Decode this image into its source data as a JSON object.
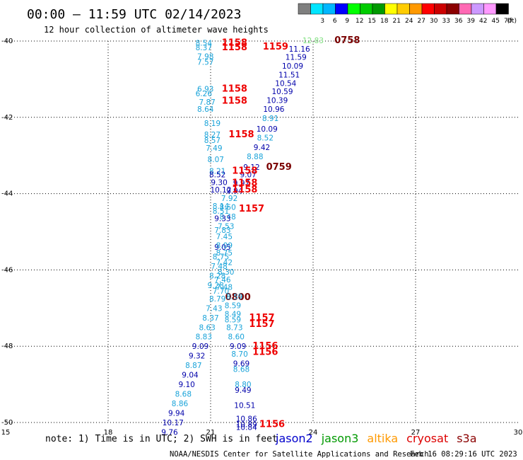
{
  "header": {
    "title": "00:00 – 11:59 UTC 02/14/2023",
    "subtitle": "12 hour collection of altimeter wave heights"
  },
  "scale": {
    "unit": "(ft)",
    "bins": [
      {
        "label": "",
        "color": "#7f7f7f"
      },
      {
        "label": "3",
        "color": "#00e5ff"
      },
      {
        "label": "6",
        "color": "#00b7ff"
      },
      {
        "label": "9",
        "color": "#0000ff"
      },
      {
        "label": "12",
        "color": "#00ff00"
      },
      {
        "label": "15",
        "color": "#00cc00"
      },
      {
        "label": "18",
        "color": "#009900"
      },
      {
        "label": "21",
        "color": "#ffff00"
      },
      {
        "label": "24",
        "color": "#ffcc00"
      },
      {
        "label": "27",
        "color": "#ff9900"
      },
      {
        "label": "30",
        "color": "#ff0000"
      },
      {
        "label": "33",
        "color": "#cc0000"
      },
      {
        "label": "36",
        "color": "#8b0000"
      },
      {
        "label": "39",
        "color": "#ff69b4"
      },
      {
        "label": "42",
        "color": "#cc99ff"
      },
      {
        "label": "45",
        "color": "#ff99ff"
      },
      {
        "label": "70",
        "color": "#000000"
      }
    ]
  },
  "footer": {
    "note": "note: 1) Time is in UTC; 2) SWH is in feet",
    "credit": "NOAA/NESDIS Center for Satellite Applications and Research",
    "timestamp": "Feb 16 08:29:16 UTC 2023",
    "legend": [
      {
        "name": "jason2",
        "color": "#0000cc"
      },
      {
        "name": "jason3",
        "color": "#009900"
      },
      {
        "name": "altika",
        "color": "#ff9900"
      },
      {
        "name": "cryosat",
        "color": "#dd0000"
      },
      {
        "name": "s3a",
        "color": "#8b0000"
      }
    ]
  },
  "colors": {
    "cyan": "#19a3d9",
    "blue": "#0000aa",
    "red": "#ee0000",
    "darkred": "#7a0000",
    "green": "#7fe07f"
  },
  "chart_data": {
    "type": "scatter",
    "xlim": [
      15,
      30
    ],
    "ylim": [
      -50,
      -40
    ],
    "xticks": [
      15,
      18,
      21,
      24,
      27,
      30
    ],
    "yticks": [
      -40,
      -42,
      -44,
      -46,
      -48,
      -50
    ],
    "grid": true,
    "points": [
      {
        "x": 20.8,
        "y": -40.05,
        "label": "8.54",
        "c": "cyan"
      },
      {
        "x": 20.8,
        "y": -40.17,
        "label": "8.37",
        "c": "cyan"
      },
      {
        "x": 20.85,
        "y": -40.4,
        "label": "7.98",
        "c": "cyan"
      },
      {
        "x": 20.85,
        "y": -40.55,
        "label": "7.57",
        "c": "cyan"
      },
      {
        "x": 21.7,
        "y": -40.05,
        "label": "1158",
        "c": "red",
        "big": true
      },
      {
        "x": 21.7,
        "y": -40.17,
        "label": "1158",
        "c": "red",
        "big": true
      },
      {
        "x": 22.9,
        "y": -40.15,
        "label": "1159",
        "c": "red",
        "big": true
      },
      {
        "x": 24.0,
        "y": -39.98,
        "label": "12.83",
        "c": "green"
      },
      {
        "x": 25.0,
        "y": -39.98,
        "label": "0758",
        "c": "darkred",
        "big": true
      },
      {
        "x": 23.6,
        "y": -40.2,
        "label": "11.16",
        "c": "blue"
      },
      {
        "x": 23.5,
        "y": -40.42,
        "label": "11.59",
        "c": "blue"
      },
      {
        "x": 23.4,
        "y": -40.65,
        "label": "10.09",
        "c": "blue"
      },
      {
        "x": 23.3,
        "y": -40.88,
        "label": "11.51",
        "c": "blue"
      },
      {
        "x": 23.2,
        "y": -41.1,
        "label": "10.54",
        "c": "blue"
      },
      {
        "x": 23.1,
        "y": -41.32,
        "label": "10.59",
        "c": "blue"
      },
      {
        "x": 22.95,
        "y": -41.55,
        "label": "10.39",
        "c": "blue"
      },
      {
        "x": 22.85,
        "y": -41.78,
        "label": "10.96",
        "c": "blue"
      },
      {
        "x": 22.75,
        "y": -42.02,
        "label": "8.91",
        "c": "cyan"
      },
      {
        "x": 22.65,
        "y": -42.3,
        "label": "10.09",
        "c": "blue"
      },
      {
        "x": 22.6,
        "y": -42.53,
        "label": "8.52",
        "c": "cyan"
      },
      {
        "x": 22.5,
        "y": -42.78,
        "label": "9.42",
        "c": "blue"
      },
      {
        "x": 22.3,
        "y": -43.02,
        "label": "8.88",
        "c": "cyan"
      },
      {
        "x": 22.2,
        "y": -43.3,
        "label": "9.12",
        "c": "blue"
      },
      {
        "x": 23.0,
        "y": -43.3,
        "label": "0759",
        "c": "darkred",
        "big": true
      },
      {
        "x": 22.1,
        "y": -43.5,
        "label": "9.07",
        "c": "blue"
      },
      {
        "x": 21.9,
        "y": -43.72,
        "label": "9.97",
        "c": "blue"
      },
      {
        "x": 21.7,
        "y": -43.92,
        "label": "9.94",
        "c": "blue"
      },
      {
        "x": 21.55,
        "y": -44.12,
        "label": "7.92",
        "c": "cyan"
      },
      {
        "x": 21.5,
        "y": -44.35,
        "label": "8.50",
        "c": "cyan"
      },
      {
        "x": 21.5,
        "y": -44.6,
        "label": "8.48",
        "c": "cyan"
      },
      {
        "x": 21.45,
        "y": -44.85,
        "label": "7.53",
        "c": "cyan"
      },
      {
        "x": 21.4,
        "y": -45.12,
        "label": "7.45",
        "c": "cyan"
      },
      {
        "x": 21.35,
        "y": -45.4,
        "label": "9.05",
        "c": "blue"
      },
      {
        "x": 21.3,
        "y": -45.65,
        "label": "8.75",
        "c": "cyan"
      },
      {
        "x": 21.25,
        "y": -45.9,
        "label": "7.48",
        "c": "cyan"
      },
      {
        "x": 21.2,
        "y": -46.15,
        "label": "8.28",
        "c": "cyan"
      },
      {
        "x": 21.15,
        "y": -46.4,
        "label": "9.28",
        "c": "cyan"
      },
      {
        "x": 21.4,
        "y": -46.45,
        "label": "7.48",
        "c": "cyan"
      },
      {
        "x": 21.8,
        "y": -46.72,
        "label": "0800",
        "c": "darkred",
        "big": true
      },
      {
        "x": 21.7,
        "y": -46.7,
        "label": "8.59",
        "c": "cyan"
      },
      {
        "x": 21.65,
        "y": -46.93,
        "label": "8.59",
        "c": "cyan"
      },
      {
        "x": 21.65,
        "y": -47.15,
        "label": "8.49",
        "c": "cyan"
      },
      {
        "x": 21.65,
        "y": -47.3,
        "label": "8.59",
        "c": "cyan"
      },
      {
        "x": 21.7,
        "y": -47.5,
        "label": "8.73",
        "c": "cyan"
      },
      {
        "x": 21.75,
        "y": -47.75,
        "label": "8.60",
        "c": "cyan"
      },
      {
        "x": 22.5,
        "y": -47.25,
        "label": "1157",
        "c": "red",
        "big": true
      },
      {
        "x": 22.5,
        "y": -47.42,
        "label": "1157",
        "c": "red",
        "big": true
      },
      {
        "x": 21.8,
        "y": -48.0,
        "label": "9.09",
        "c": "blue"
      },
      {
        "x": 21.85,
        "y": -48.2,
        "label": "8.70",
        "c": "cyan"
      },
      {
        "x": 22.6,
        "y": -48.0,
        "label": "1156",
        "c": "red",
        "big": true
      },
      {
        "x": 22.6,
        "y": -48.15,
        "label": "1156",
        "c": "red",
        "big": true
      },
      {
        "x": 21.9,
        "y": -48.45,
        "label": "9.69",
        "c": "blue"
      },
      {
        "x": 21.9,
        "y": -48.6,
        "label": "8.68",
        "c": "cyan"
      },
      {
        "x": 21.95,
        "y": -49.0,
        "label": "8.80",
        "c": "cyan"
      },
      {
        "x": 21.95,
        "y": -49.15,
        "label": "9.49",
        "c": "blue"
      },
      {
        "x": 22.0,
        "y": -49.55,
        "label": "10.51",
        "c": "blue"
      },
      {
        "x": 22.05,
        "y": -49.9,
        "label": "10.86",
        "c": "blue"
      },
      {
        "x": 22.05,
        "y": -50.05,
        "label": "10.89",
        "c": "blue"
      },
      {
        "x": 22.05,
        "y": -50.12,
        "label": "10.84",
        "c": "blue"
      },
      {
        "x": 22.8,
        "y": -50.05,
        "label": "1156",
        "c": "red",
        "big": true
      },
      {
        "x": 20.85,
        "y": -41.25,
        "label": "6.93",
        "c": "cyan"
      },
      {
        "x": 20.8,
        "y": -41.37,
        "label": "6.26",
        "c": "cyan"
      },
      {
        "x": 20.9,
        "y": -41.6,
        "label": "7.87",
        "c": "cyan"
      },
      {
        "x": 20.85,
        "y": -41.78,
        "label": "8.64",
        "c": "cyan"
      },
      {
        "x": 21.7,
        "y": -41.25,
        "label": "1158",
        "c": "red",
        "big": true
      },
      {
        "x": 21.7,
        "y": -41.57,
        "label": "1158",
        "c": "red",
        "big": true
      },
      {
        "x": 21.05,
        "y": -42.15,
        "label": "8.19",
        "c": "cyan"
      },
      {
        "x": 21.05,
        "y": -42.45,
        "label": "8.27",
        "c": "cyan"
      },
      {
        "x": 21.05,
        "y": -42.6,
        "label": "8.57",
        "c": "cyan"
      },
      {
        "x": 21.1,
        "y": -42.8,
        "label": "7.49",
        "c": "cyan"
      },
      {
        "x": 21.15,
        "y": -43.1,
        "label": "8.07",
        "c": "cyan"
      },
      {
        "x": 21.9,
        "y": -42.45,
        "label": "1158",
        "c": "red",
        "big": true
      },
      {
        "x": 21.2,
        "y": -43.4,
        "label": "8.21",
        "c": "cyan"
      },
      {
        "x": 21.2,
        "y": -43.5,
        "label": "8.52",
        "c": "blue"
      },
      {
        "x": 21.25,
        "y": -43.7,
        "label": "9.30",
        "c": "blue"
      },
      {
        "x": 21.3,
        "y": -43.9,
        "label": "10.12",
        "c": "blue"
      },
      {
        "x": 22.0,
        "y": -43.4,
        "label": "1158",
        "c": "red",
        "big": true
      },
      {
        "x": 22.0,
        "y": -43.72,
        "label": "1158",
        "c": "red",
        "big": true
      },
      {
        "x": 22.0,
        "y": -43.9,
        "label": "1158",
        "c": "red",
        "big": true
      },
      {
        "x": 21.3,
        "y": -44.32,
        "label": "8.14",
        "c": "cyan"
      },
      {
        "x": 21.3,
        "y": -44.45,
        "label": "8.51",
        "c": "cyan"
      },
      {
        "x": 21.35,
        "y": -44.65,
        "label": "9.33",
        "c": "blue"
      },
      {
        "x": 22.2,
        "y": -44.4,
        "label": "1157",
        "c": "red",
        "big": true
      },
      {
        "x": 21.35,
        "y": -44.95,
        "label": "7.83",
        "c": "cyan"
      },
      {
        "x": 21.4,
        "y": -45.35,
        "label": "8.09",
        "c": "cyan"
      },
      {
        "x": 21.4,
        "y": -45.55,
        "label": "8.75",
        "c": "cyan"
      },
      {
        "x": 21.4,
        "y": -45.8,
        "label": "7.42",
        "c": "cyan"
      },
      {
        "x": 21.45,
        "y": -46.05,
        "label": "8.30",
        "c": "cyan"
      },
      {
        "x": 21.35,
        "y": -46.25,
        "label": "7.46",
        "c": "cyan"
      },
      {
        "x": 21.3,
        "y": -46.55,
        "label": "7.70",
        "c": "cyan"
      },
      {
        "x": 21.2,
        "y": -46.75,
        "label": "8.79",
        "c": "cyan"
      },
      {
        "x": 21.1,
        "y": -47.0,
        "label": "7.43",
        "c": "cyan"
      },
      {
        "x": 21.0,
        "y": -47.25,
        "label": "8.37",
        "c": "cyan"
      },
      {
        "x": 20.9,
        "y": -47.5,
        "label": "8.63",
        "c": "cyan"
      },
      {
        "x": 20.8,
        "y": -47.75,
        "label": "8.83",
        "c": "cyan"
      },
      {
        "x": 20.7,
        "y": -48.0,
        "label": "9.09",
        "c": "blue"
      },
      {
        "x": 20.6,
        "y": -48.25,
        "label": "9.32",
        "c": "blue"
      },
      {
        "x": 20.5,
        "y": -48.5,
        "label": "8.87",
        "c": "cyan"
      },
      {
        "x": 20.4,
        "y": -48.75,
        "label": "9.04",
        "c": "blue"
      },
      {
        "x": 20.3,
        "y": -49.0,
        "label": "9.10",
        "c": "blue"
      },
      {
        "x": 20.2,
        "y": -49.25,
        "label": "8.68",
        "c": "cyan"
      },
      {
        "x": 20.1,
        "y": -49.5,
        "label": "8.86",
        "c": "cyan"
      },
      {
        "x": 20.0,
        "y": -49.75,
        "label": "9.94",
        "c": "blue"
      },
      {
        "x": 19.9,
        "y": -50.0,
        "label": "10.17",
        "c": "blue"
      },
      {
        "x": 19.8,
        "y": -50.25,
        "label": "9.76",
        "c": "blue"
      }
    ]
  }
}
